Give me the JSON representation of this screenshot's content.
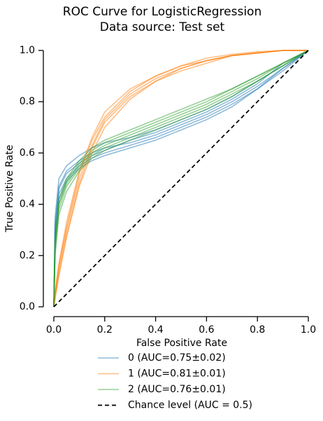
{
  "chart_data": {
    "type": "line",
    "title": "ROC Curve for LogisticRegression",
    "subtitle": "Data source: Test set",
    "xlabel": "False Positive Rate",
    "ylabel": "True Positive Rate",
    "xlim": [
      0,
      1
    ],
    "ylim": [
      0,
      1
    ],
    "xticks": [
      {
        "value": 0,
        "label": "0.0"
      },
      {
        "value": 0.2,
        "label": "0.2"
      },
      {
        "value": 0.4,
        "label": "0.4"
      },
      {
        "value": 0.6,
        "label": "0.6"
      },
      {
        "value": 0.8,
        "label": "0.8"
      },
      {
        "value": 1,
        "label": "1.0"
      }
    ],
    "yticks": [
      {
        "value": 0,
        "label": "0.0"
      },
      {
        "value": 0.2,
        "label": "0.2"
      },
      {
        "value": 0.4,
        "label": "0.4"
      },
      {
        "value": 0.6,
        "label": "0.6"
      },
      {
        "value": 0.8,
        "label": "0.8"
      },
      {
        "value": 1,
        "label": "1.0"
      }
    ],
    "x": [
      0,
      0.005,
      0.02,
      0.05,
      0.1,
      0.15,
      0.2,
      0.3,
      0.4,
      0.5,
      0.6,
      0.7,
      0.8,
      0.9,
      1
    ],
    "series": [
      {
        "name": "0 (AUC=0.75±0.02)",
        "color": "#1f77b4",
        "folds": [
          [
            0,
            0.32,
            0.47,
            0.53,
            0.57,
            0.6,
            0.62,
            0.64,
            0.67,
            0.71,
            0.75,
            0.8,
            0.86,
            0.93,
            1
          ],
          [
            0,
            0.28,
            0.44,
            0.5,
            0.55,
            0.58,
            0.6,
            0.63,
            0.66,
            0.7,
            0.74,
            0.79,
            0.85,
            0.92,
            1
          ],
          [
            0,
            0.35,
            0.5,
            0.55,
            0.59,
            0.62,
            0.64,
            0.66,
            0.69,
            0.73,
            0.77,
            0.82,
            0.88,
            0.94,
            1
          ],
          [
            0,
            0.25,
            0.42,
            0.49,
            0.54,
            0.57,
            0.59,
            0.62,
            0.65,
            0.69,
            0.73,
            0.78,
            0.85,
            0.93,
            1
          ],
          [
            0,
            0.3,
            0.46,
            0.52,
            0.56,
            0.59,
            0.61,
            0.65,
            0.68,
            0.72,
            0.76,
            0.81,
            0.87,
            0.95,
            1
          ]
        ]
      },
      {
        "name": "1 (AUC=0.81±0.01)",
        "color": "#ff7f0e",
        "folds": [
          [
            0,
            0.05,
            0.15,
            0.3,
            0.5,
            0.63,
            0.73,
            0.83,
            0.89,
            0.93,
            0.96,
            0.98,
            0.99,
            1,
            1
          ],
          [
            0,
            0.04,
            0.12,
            0.27,
            0.47,
            0.6,
            0.7,
            0.81,
            0.88,
            0.93,
            0.96,
            0.98,
            0.99,
            1,
            1
          ],
          [
            0,
            0.06,
            0.17,
            0.33,
            0.53,
            0.66,
            0.76,
            0.85,
            0.9,
            0.94,
            0.97,
            0.985,
            0.995,
            1,
            1
          ],
          [
            0,
            0.03,
            0.13,
            0.28,
            0.48,
            0.62,
            0.72,
            0.82,
            0.88,
            0.92,
            0.95,
            0.98,
            0.99,
            1,
            1
          ],
          [
            0,
            0.05,
            0.16,
            0.31,
            0.52,
            0.65,
            0.74,
            0.84,
            0.9,
            0.94,
            0.96,
            0.98,
            0.99,
            1,
            1
          ]
        ]
      },
      {
        "name": "2 (AUC=0.76±0.01)",
        "color": "#2ca02c",
        "folds": [
          [
            0,
            0.25,
            0.4,
            0.48,
            0.55,
            0.6,
            0.63,
            0.67,
            0.71,
            0.75,
            0.79,
            0.84,
            0.89,
            0.95,
            1
          ],
          [
            0,
            0.22,
            0.38,
            0.47,
            0.54,
            0.59,
            0.62,
            0.66,
            0.7,
            0.74,
            0.78,
            0.83,
            0.88,
            0.94,
            1
          ],
          [
            0,
            0.27,
            0.42,
            0.5,
            0.57,
            0.62,
            0.65,
            0.69,
            0.73,
            0.77,
            0.81,
            0.85,
            0.9,
            0.95,
            1
          ],
          [
            0,
            0.2,
            0.36,
            0.45,
            0.53,
            0.58,
            0.61,
            0.65,
            0.69,
            0.73,
            0.77,
            0.82,
            0.88,
            0.94,
            1
          ],
          [
            0,
            0.24,
            0.4,
            0.49,
            0.56,
            0.61,
            0.64,
            0.68,
            0.72,
            0.76,
            0.8,
            0.85,
            0.9,
            0.95,
            1
          ]
        ]
      },
      {
        "name": "Chance level (AUC = 0.5)",
        "color": "#000000",
        "linestyle": "dashed",
        "x": [
          0,
          1
        ],
        "values": [
          0,
          1
        ]
      }
    ]
  }
}
